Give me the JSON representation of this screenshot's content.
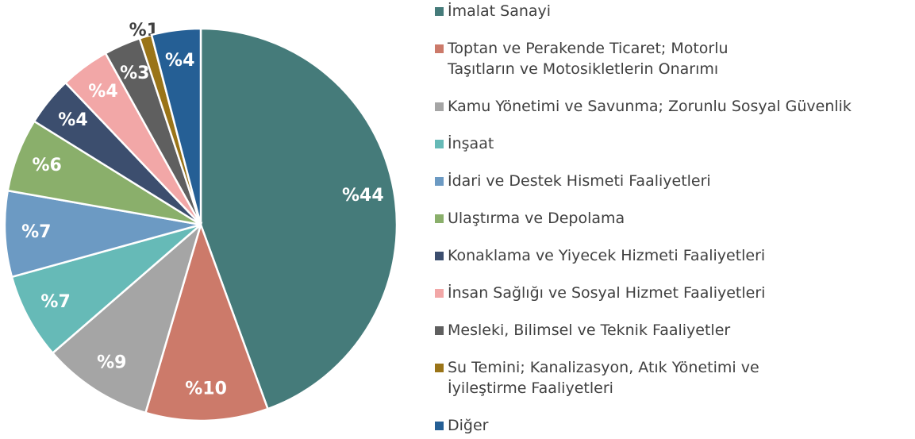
{
  "chart_data": {
    "type": "pie",
    "categories": [
      "İmalat Sanayi",
      "Toptan ve Perakende Ticaret; Motorlu\nTaşıtların ve Motosikletlerin Onarımı",
      "Kamu Yönetimi ve Savunma; Zorunlu Sosyal Güvenlik",
      "İnşaat",
      "İdari ve Destek Hismeti Faaliyetleri",
      "Ulaştırma ve Depolama",
      "Konaklama ve Yiyecek Hizmeti Faaliyetleri",
      "İnsan Sağlığı ve Sosyal Hizmet Faaliyetleri",
      "Mesleki, Bilimsel ve Teknik Faaliyetler",
      "Su Temini; Kanalizasyon, Atık Yönetimi ve\nİyileştirme Faaliyetleri",
      "Diğer"
    ],
    "values": [
      44,
      10,
      9,
      7,
      7,
      6,
      4,
      4,
      3,
      1,
      4
    ],
    "value_labels": [
      "%44",
      "%10",
      "%9",
      "%7",
      "%7",
      "%6",
      "%4",
      "%4",
      "%3",
      "%1",
      "%4"
    ],
    "colors": [
      "#457b7a",
      "#cc7a6a",
      "#a5a5a5",
      "#66bab7",
      "#6c9ac3",
      "#8aaf6b",
      "#3c4e6e",
      "#f2a7a7",
      "#5f5f5f",
      "#9a7418",
      "#255f95"
    ],
    "legend": "right"
  }
}
